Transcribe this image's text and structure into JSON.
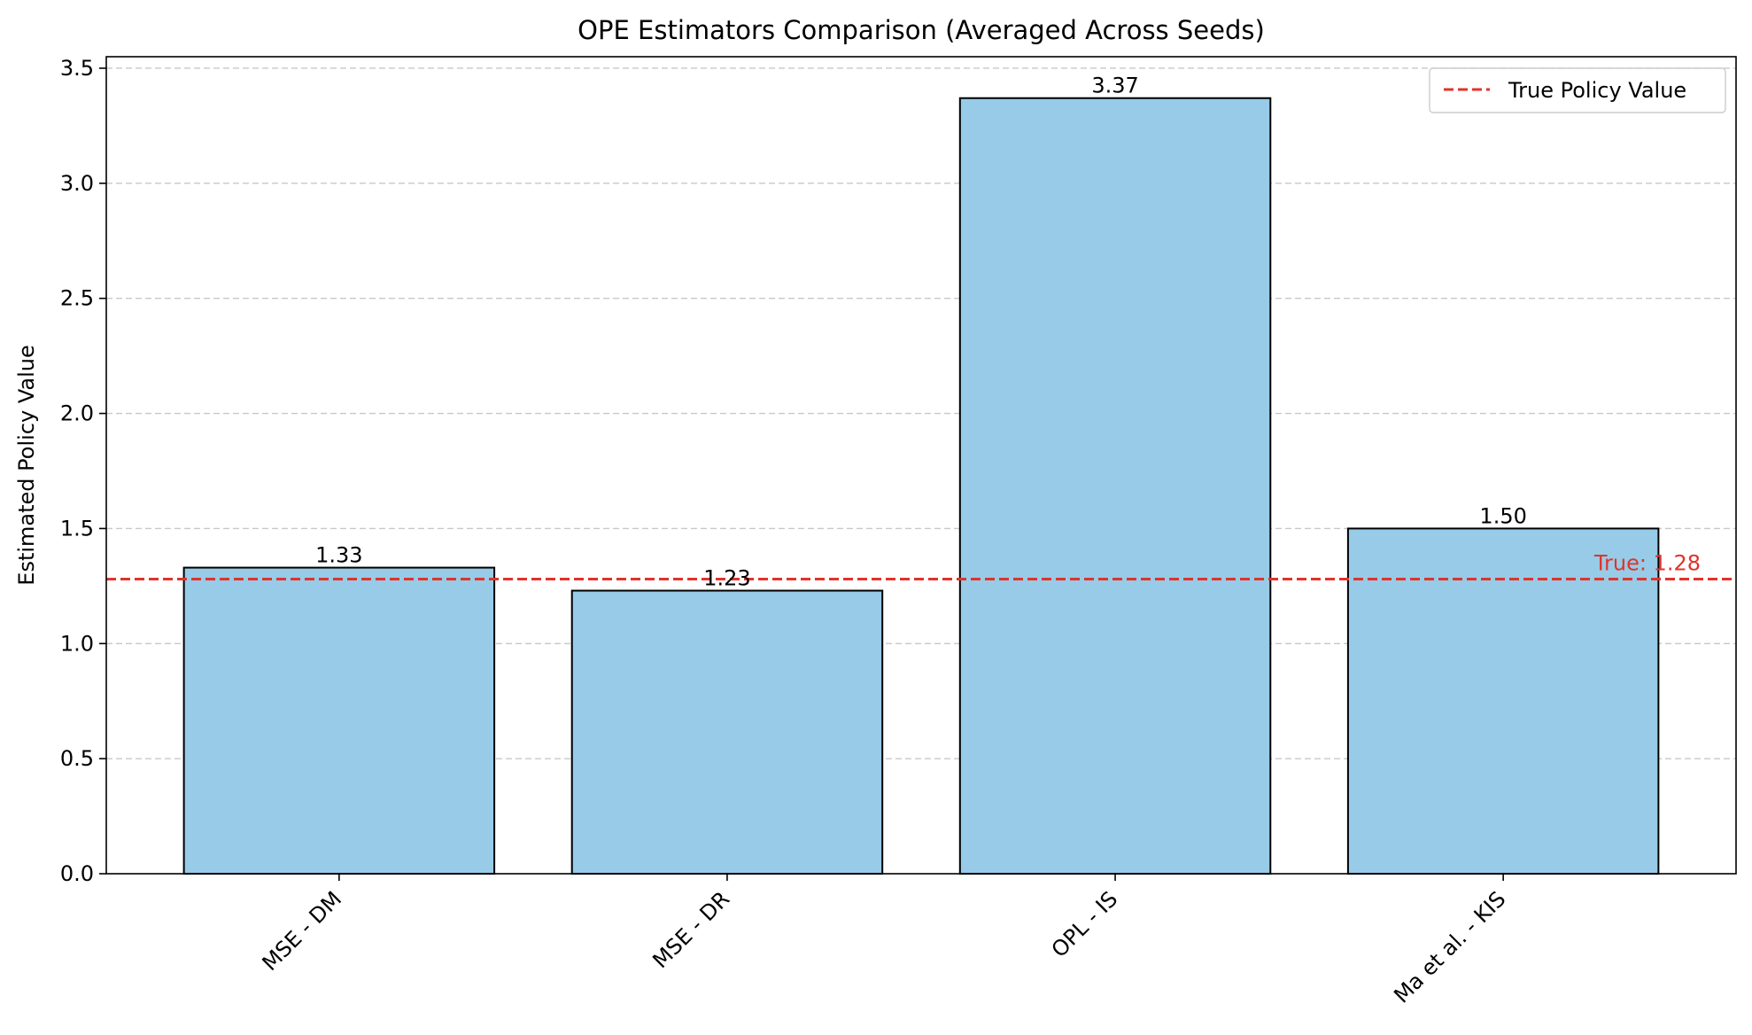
{
  "chart_data": {
    "type": "bar",
    "title": "OPE Estimators Comparison (Averaged Across Seeds)",
    "xlabel": "",
    "ylabel": "Estimated Policy Value",
    "categories": [
      "MSE - DM",
      "MSE - DR",
      "OPL - IS",
      "Ma et al. - KIS"
    ],
    "values": [
      1.33,
      1.23,
      3.37,
      1.5
    ],
    "value_labels": [
      "1.33",
      "1.23",
      "3.37",
      "1.50"
    ],
    "ylim": [
      0,
      3.55
    ],
    "yticks": [
      0.0,
      0.5,
      1.0,
      1.5,
      2.0,
      2.5,
      3.0,
      3.5
    ],
    "ytick_labels": [
      "0.0",
      "0.5",
      "1.0",
      "1.5",
      "2.0",
      "2.5",
      "3.0",
      "3.5"
    ],
    "grid": "y-dashed",
    "legend_position": "top-right",
    "reference_line": {
      "value": 1.28,
      "label": "True Policy Value",
      "annotation": "True: 1.28",
      "style": "dashed"
    },
    "colors": {
      "bar_fill": "#97cbe7",
      "bar_edge": "#000000",
      "reference": "#e0332b",
      "grid": "#c8c8c8"
    }
  }
}
